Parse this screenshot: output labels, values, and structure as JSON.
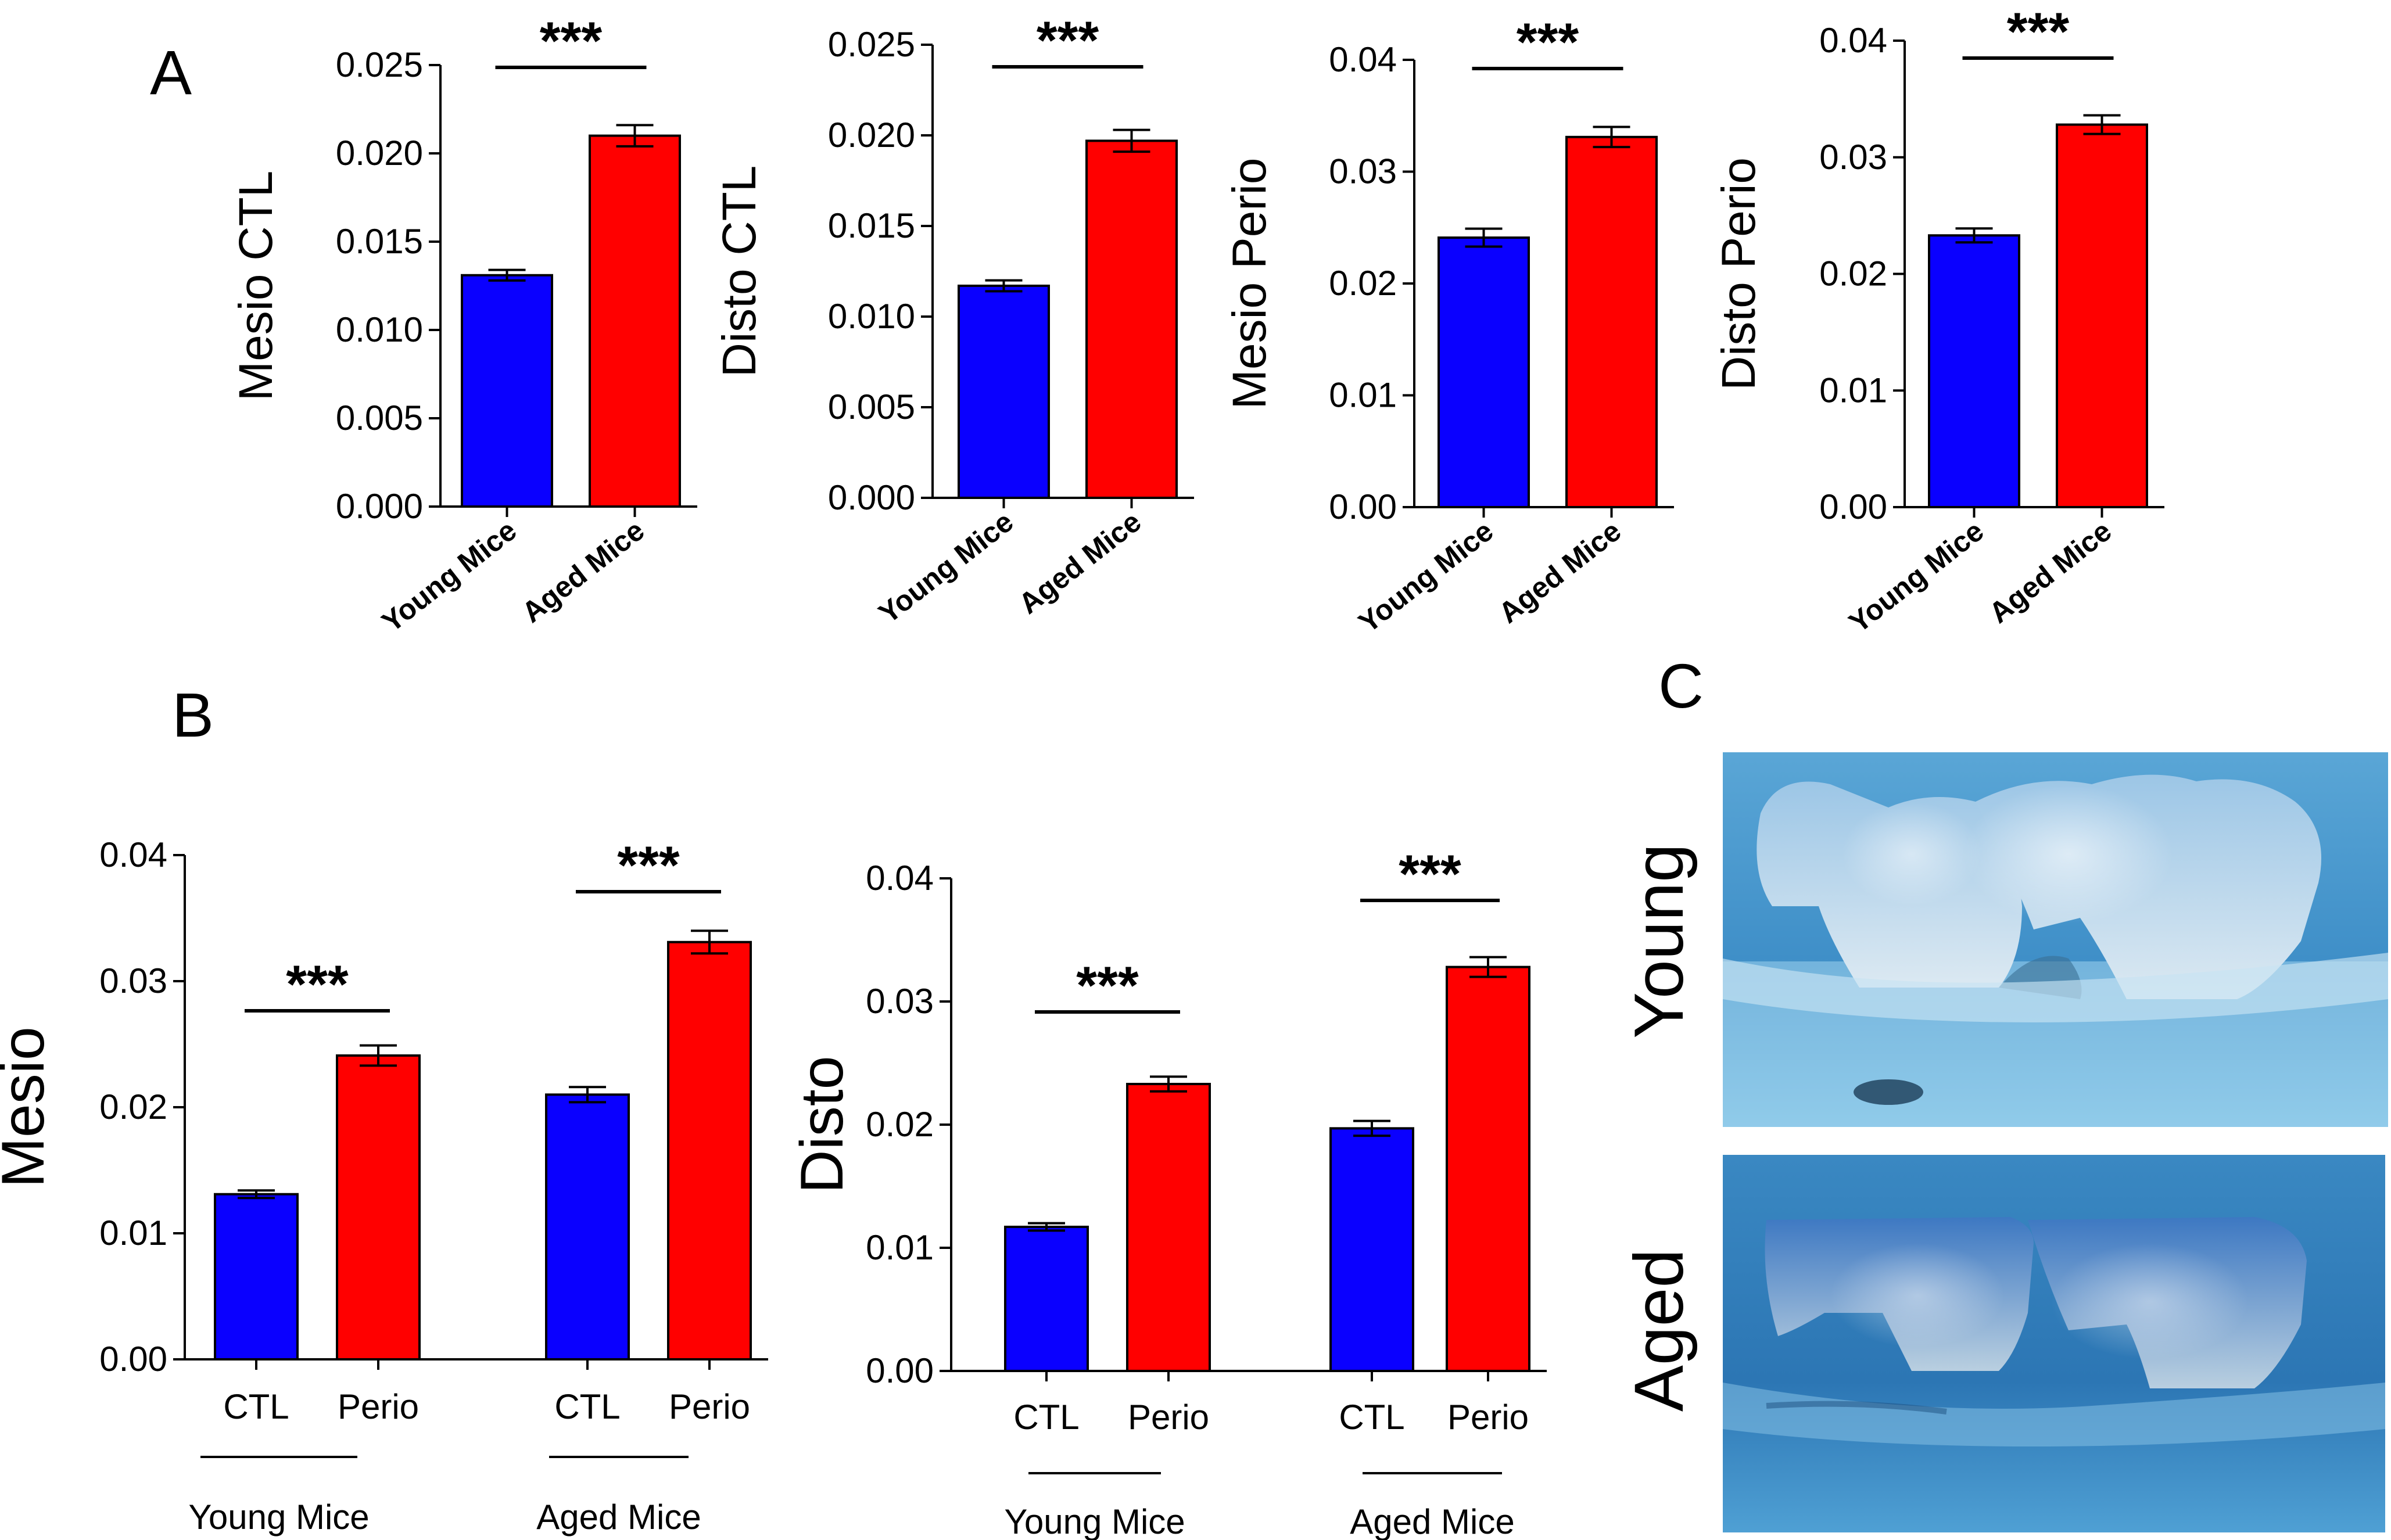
{
  "panels": {
    "A": "A",
    "B": "B",
    "C": "C"
  },
  "colors": {
    "blue": "#0a00ff",
    "red": "#ff0000",
    "axis": "#000000"
  },
  "chart_data": [
    {
      "type": "bar",
      "panel": "A",
      "ylabel": "Mesio CTL",
      "categories": [
        "Young Mice",
        "Aged Mice"
      ],
      "values": [
        0.0131,
        0.021
      ],
      "errors": [
        0.0003,
        0.0006
      ],
      "colors": [
        "blue",
        "red"
      ],
      "ylim": [
        0,
        0.025
      ],
      "yticks": [
        0,
        0.005,
        0.01,
        0.015,
        0.02,
        0.025
      ],
      "ytick_labels": [
        "0.000",
        "0.005",
        "0.010",
        "0.015",
        "0.020",
        "0.025"
      ],
      "significance": [
        {
          "from": 0,
          "to": 1,
          "label": "***"
        }
      ]
    },
    {
      "type": "bar",
      "panel": "A",
      "ylabel": "Disto CTL",
      "categories": [
        "Young Mice",
        "Aged Mice"
      ],
      "values": [
        0.0117,
        0.0197
      ],
      "errors": [
        0.0003,
        0.0006
      ],
      "colors": [
        "blue",
        "red"
      ],
      "ylim": [
        0,
        0.025
      ],
      "yticks": [
        0,
        0.005,
        0.01,
        0.015,
        0.02,
        0.025
      ],
      "ytick_labels": [
        "0.000",
        "0.005",
        "0.010",
        "0.015",
        "0.020",
        "0.025"
      ],
      "significance": [
        {
          "from": 0,
          "to": 1,
          "label": "***"
        }
      ]
    },
    {
      "type": "bar",
      "panel": "A",
      "ylabel": "Mesio Perio",
      "categories": [
        "Young Mice",
        "Aged Mice"
      ],
      "values": [
        0.0241,
        0.0331
      ],
      "errors": [
        0.0008,
        0.0009
      ],
      "colors": [
        "blue",
        "red"
      ],
      "ylim": [
        0,
        0.04
      ],
      "yticks": [
        0,
        0.01,
        0.02,
        0.03,
        0.04
      ],
      "ytick_labels": [
        "0.00",
        "0.01",
        "0.02",
        "0.03",
        "0.04"
      ],
      "significance": [
        {
          "from": 0,
          "to": 1,
          "label": "***"
        }
      ]
    },
    {
      "type": "bar",
      "panel": "A",
      "ylabel": "Disto Perio",
      "categories": [
        "Young Mice",
        "Aged Mice"
      ],
      "values": [
        0.0233,
        0.0328
      ],
      "errors": [
        0.0006,
        0.0008
      ],
      "colors": [
        "blue",
        "red"
      ],
      "ylim": [
        0,
        0.04
      ],
      "yticks": [
        0,
        0.01,
        0.02,
        0.03,
        0.04
      ],
      "ytick_labels": [
        "0.00",
        "0.01",
        "0.02",
        "0.03",
        "0.04"
      ],
      "significance": [
        {
          "from": 0,
          "to": 1,
          "label": "***"
        }
      ]
    },
    {
      "type": "bar",
      "panel": "B",
      "ylabel": "Mesio",
      "categories": [
        "CTL",
        "Perio",
        "CTL",
        "Perio"
      ],
      "groups": [
        "Young Mice",
        "Aged Mice"
      ],
      "values": [
        0.0131,
        0.0241,
        0.021,
        0.0331
      ],
      "errors": [
        0.0003,
        0.0008,
        0.0006,
        0.0009
      ],
      "colors": [
        "blue",
        "red",
        "blue",
        "red"
      ],
      "ylim": [
        0,
        0.04
      ],
      "yticks": [
        0,
        0.01,
        0.02,
        0.03,
        0.04
      ],
      "ytick_labels": [
        "0.00",
        "0.01",
        "0.02",
        "0.03",
        "0.04"
      ],
      "significance": [
        {
          "from": 0,
          "to": 1,
          "label": "***"
        },
        {
          "from": 2,
          "to": 3,
          "label": "***"
        }
      ]
    },
    {
      "type": "bar",
      "panel": "B",
      "ylabel": "Disto",
      "categories": [
        "CTL",
        "Perio",
        "CTL",
        "Perio"
      ],
      "groups": [
        "Young Mice",
        "Aged Mice"
      ],
      "values": [
        0.0117,
        0.0233,
        0.0197,
        0.0328
      ],
      "errors": [
        0.0003,
        0.0006,
        0.0006,
        0.0008
      ],
      "colors": [
        "blue",
        "red",
        "blue",
        "red"
      ],
      "ylim": [
        0,
        0.04
      ],
      "yticks": [
        0,
        0.01,
        0.02,
        0.03,
        0.04
      ],
      "ytick_labels": [
        "0.00",
        "0.01",
        "0.02",
        "0.03",
        "0.04"
      ],
      "significance": [
        {
          "from": 0,
          "to": 1,
          "label": "***"
        },
        {
          "from": 2,
          "to": 3,
          "label": "***"
        }
      ]
    }
  ],
  "photos": [
    {
      "label": "Young",
      "icon": "young-mouse-jaw-photo"
    },
    {
      "label": "Aged",
      "icon": "aged-mouse-jaw-photo"
    }
  ]
}
